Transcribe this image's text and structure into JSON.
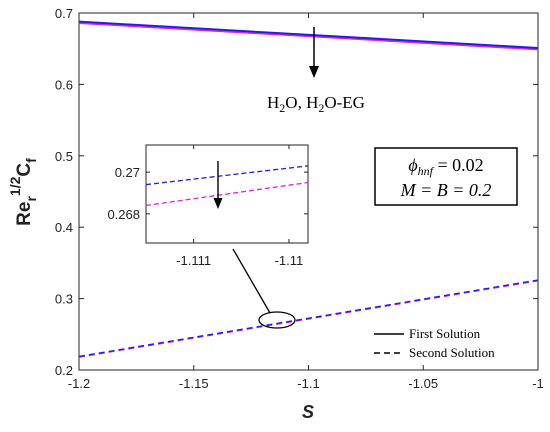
{
  "chart_data": {
    "type": "line",
    "xlabel": "S",
    "ylabel": {
      "base1": "Re",
      "sub1": "r",
      "sup1": "1/2",
      "base2": "C",
      "sub2": "f"
    },
    "xlim": [
      -1.2,
      -1.0
    ],
    "ylim": [
      0.2,
      0.7
    ],
    "xticks": [
      -1.2,
      -1.15,
      -1.1,
      -1.05,
      -1
    ],
    "xtick_labels": [
      "-1.2",
      "-1.15",
      "-1.1",
      "-1.05",
      "-1"
    ],
    "yticks": [
      0.2,
      0.3,
      0.4,
      0.5,
      0.6,
      0.7
    ],
    "ytick_labels": [
      "0.2",
      "0.3",
      "0.4",
      "0.5",
      "0.6",
      "0.7"
    ],
    "grid": false,
    "legend_placement": "bottom-right",
    "legend": [
      {
        "label": "First Solution",
        "style": "solid"
      },
      {
        "label": "Second Solution",
        "style": "dashed"
      }
    ],
    "series": [
      {
        "solution": "first",
        "fluid": "H2O",
        "color": "#1f1fe0",
        "dash": false,
        "x": [
          -1.2,
          -1.0
        ],
        "y": [
          0.688,
          0.651
        ]
      },
      {
        "solution": "first",
        "fluid": "H2O-EG",
        "color": "#e020e0",
        "dash": false,
        "x": [
          -1.2,
          -1.0
        ],
        "y": [
          0.686,
          0.649
        ]
      },
      {
        "solution": "second",
        "fluid": "H2O",
        "color": "#1f1fe0",
        "dash": true,
        "x": [
          -1.2,
          -1.0
        ],
        "y": [
          0.219,
          0.326
        ]
      },
      {
        "solution": "second",
        "fluid": "H2O-EG",
        "color": "#e020e0",
        "dash": true,
        "x": [
          -1.2,
          -1.0
        ],
        "y": [
          0.218,
          0.325
        ]
      }
    ],
    "annotation_arrow": {
      "label_parts": [
        "H",
        "2",
        "O, H",
        "2",
        "O-EG"
      ],
      "direction": "down",
      "x": -1.1,
      "y_from": 0.69,
      "y_to": 0.645
    },
    "param_box": {
      "line1": "ϕ",
      "line1_sub": "hnf",
      "line1_rest": " = 0.02",
      "line2": "M = B = 0.2",
      "placement": "right-middle"
    },
    "inset": {
      "xlim": [
        -1.1115,
        -1.1098
      ],
      "ylim": [
        0.2666,
        0.2713
      ],
      "xticks": [
        -1.111,
        -1.11
      ],
      "xtick_labels": [
        "-1.111",
        "-1.11"
      ],
      "yticks": [
        0.268,
        0.27
      ],
      "ytick_labels": [
        "0.268",
        "0.27"
      ],
      "series": [
        {
          "fluid": "H2O",
          "color": "#1f1fe0",
          "dash": true,
          "x": [
            -1.1115,
            -1.1098
          ],
          "y": [
            0.2694,
            0.2703
          ]
        },
        {
          "fluid": "H2O-EG",
          "color": "#e020e0",
          "dash": true,
          "x": [
            -1.1115,
            -1.1098
          ],
          "y": [
            0.2684,
            0.2695
          ]
        }
      ],
      "arrow": {
        "direction": "down"
      },
      "zoom_ellipse_center": [
        -1.112,
        0.266
      ]
    }
  }
}
